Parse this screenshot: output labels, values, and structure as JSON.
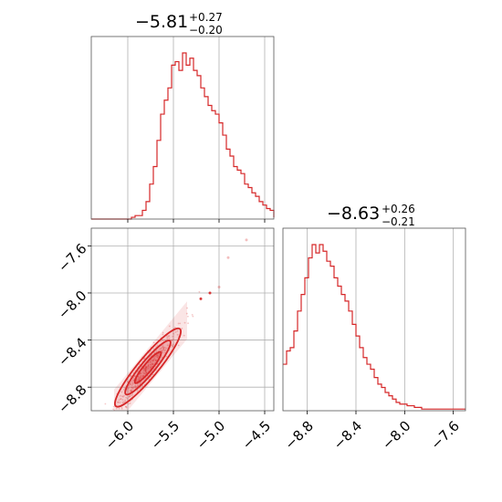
{
  "chart_data": {
    "type": "corner",
    "color": "#d62728",
    "panels": [
      {
        "id": "hist-1",
        "type": "histogram",
        "title": {
          "median": "−5.81",
          "plus": "+0.27",
          "minus": "−0.20"
        },
        "xlim": [
          -6.4,
          -4.4
        ],
        "xticks": [
          -6.0,
          -5.5,
          -5.0,
          -4.5
        ],
        "xgrid": true,
        "bin_edges_start": -6.4,
        "bin_width": 0.04,
        "counts": [
          0,
          0,
          0,
          0,
          0,
          0,
          0,
          0,
          0,
          0,
          0,
          1,
          2,
          2,
          5,
          10,
          20,
          30,
          45,
          60,
          68,
          75,
          88,
          90,
          85,
          95,
          88,
          92,
          85,
          82,
          75,
          70,
          65,
          62,
          60,
          55,
          48,
          40,
          36,
          30,
          28,
          26,
          20,
          18,
          15,
          13,
          10,
          8,
          6,
          5,
          4,
          4,
          3,
          3,
          2,
          2,
          2,
          2,
          1,
          1
        ]
      },
      {
        "id": "hist-2",
        "type": "histogram",
        "title": {
          "median": "−8.63",
          "plus": "+0.26",
          "minus": "−0.21"
        },
        "xlim": [
          -9.0,
          -7.5
        ],
        "xticks": [
          -8.8,
          -8.4,
          -8.0,
          -7.6
        ],
        "xgrid": true,
        "bin_edges_start": -9.0,
        "bin_width": 0.03,
        "counts": [
          28,
          36,
          38,
          48,
          60,
          70,
          80,
          92,
          100,
          95,
          100,
          96,
          90,
          87,
          80,
          75,
          70,
          66,
          60,
          52,
          45,
          38,
          32,
          28,
          25,
          20,
          16,
          14,
          11,
          9,
          7,
          5,
          4,
          4,
          3,
          3,
          2,
          2,
          1,
          1,
          1,
          1,
          1,
          1,
          1,
          1,
          1,
          1,
          1,
          1
        ]
      },
      {
        "id": "scatter-2d",
        "type": "2d-density",
        "xlim": [
          -6.4,
          -4.4
        ],
        "ylim": [
          -9.0,
          -7.45
        ],
        "xticks": [
          -6.0,
          -5.5,
          -5.0,
          -4.5
        ],
        "xtick_labels": [
          "−6.0",
          "−5.5",
          "−5.0",
          "−4.5"
        ],
        "yticks": [
          -7.6,
          -8.0,
          -8.4,
          -8.8
        ],
        "ytick_labels": [
          "−7.6",
          "−8.0",
          "−8.4",
          "−8.8"
        ],
        "xgrid": true,
        "ygrid": true,
        "correlation_line": {
          "x": [
            -6.15,
            -5.05
          ],
          "y": [
            -8.98,
            -7.95
          ]
        },
        "contour_levels": 3
      }
    ],
    "hist2_xtick_labels": [
      "−8.8",
      "−8.4",
      "−8.0",
      "−7.6"
    ]
  }
}
